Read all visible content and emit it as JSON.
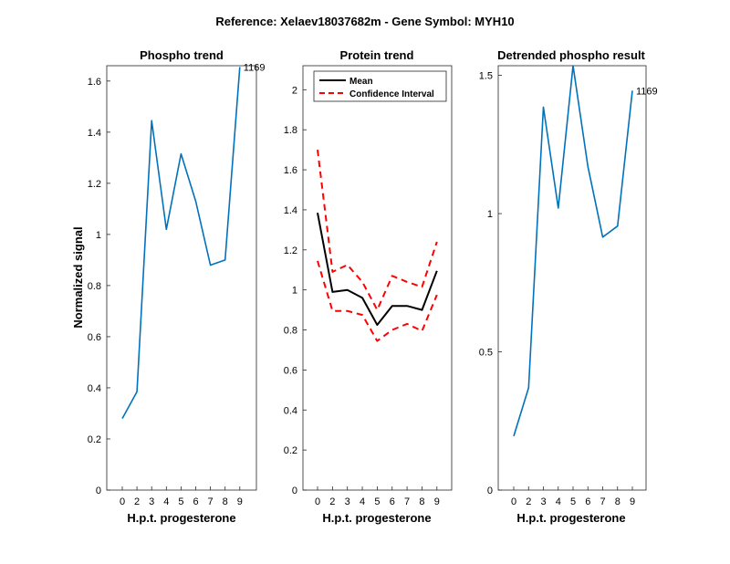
{
  "figure": {
    "title": "Reference:  Xelaev18037682m - Gene Symbol:  MYH10"
  },
  "chart_data": [
    {
      "type": "line",
      "title": "Phospho trend",
      "xlabel": "H.p.t. progesterone",
      "ylabel": "Normalized signal",
      "x_tick_labels": [
        "0",
        "2",
        "3",
        "4",
        "5",
        "6",
        "7",
        "8",
        "9"
      ],
      "y_ticks": [
        "0",
        "0.2",
        "0.4",
        "0.6",
        "0.8",
        "1",
        "1.2",
        "1.4",
        "1.6"
      ],
      "ylim": [
        0,
        1.66
      ],
      "series": [
        {
          "values": [
            0.28,
            0.385,
            1.445,
            1.02,
            1.315,
            1.13,
            0.88,
            0.9,
            1.655
          ],
          "color": "#0072BD",
          "style": "solid"
        }
      ],
      "annotation": "1169"
    },
    {
      "type": "line",
      "title": "Protein trend",
      "xlabel": "H.p.t. progesterone",
      "ylabel": "",
      "x_tick_labels": [
        "0",
        "2",
        "3",
        "4",
        "5",
        "6",
        "7",
        "8",
        "9"
      ],
      "y_ticks": [
        "0",
        "0.2",
        "0.4",
        "0.6",
        "0.8",
        "1",
        "1.2",
        "1.4",
        "1.6",
        "1.8",
        "2"
      ],
      "ylim": [
        0,
        2.12
      ],
      "legend": {
        "placement": "top-left",
        "entries": [
          "Mean",
          "Confidence Interval"
        ]
      },
      "series": [
        {
          "name": "Mean",
          "values": [
            1.385,
            0.99,
            1.0,
            0.96,
            0.825,
            0.92,
            0.92,
            0.9,
            1.095
          ],
          "color": "#000000",
          "style": "solid"
        },
        {
          "name": "Confidence Interval",
          "values": [
            1.7,
            1.09,
            1.125,
            1.04,
            0.9,
            1.07,
            1.04,
            1.015,
            1.24
          ],
          "color": "#ff0000",
          "style": "dashed"
        },
        {
          "name": "Confidence Interval",
          "values": [
            1.145,
            0.895,
            0.895,
            0.875,
            0.745,
            0.8,
            0.83,
            0.795,
            0.975
          ],
          "color": "#ff0000",
          "style": "dashed"
        }
      ]
    },
    {
      "type": "line",
      "title": "Detrended phospho result",
      "xlabel": "H.p.t. progesterone",
      "ylabel": "",
      "x_tick_labels": [
        "0",
        "2",
        "3",
        "4",
        "5",
        "6",
        "7",
        "8",
        "9"
      ],
      "y_ticks": [
        "0",
        "0.5",
        "1",
        "1.5"
      ],
      "ylim": [
        0,
        1.535
      ],
      "series": [
        {
          "values": [
            0.195,
            0.37,
            1.385,
            1.02,
            1.535,
            1.17,
            0.915,
            0.955,
            1.445
          ],
          "color": "#0072BD",
          "style": "solid"
        }
      ],
      "annotation": "1169"
    }
  ]
}
